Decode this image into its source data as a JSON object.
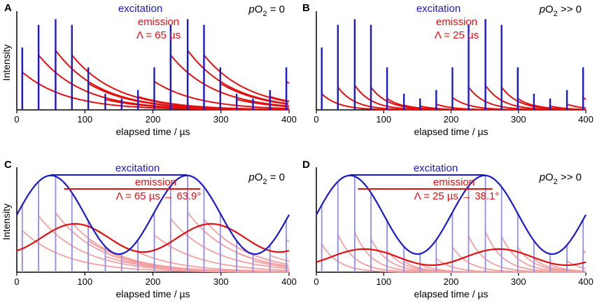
{
  "colors": {
    "excitation": "#1a1acc",
    "emission": "#e01010",
    "excitation_light": "#8f8ff0",
    "emission_light": "#f4a0a0",
    "axis": "#000000"
  },
  "chart_data": [
    {
      "panel": "A",
      "type": "line",
      "mode": "pulsed",
      "title": "",
      "xlabel": "elapsed time / µs",
      "ylabel": "Intensity",
      "xlim": [
        0,
        400
      ],
      "xticks": [
        0,
        100,
        200,
        300,
        400
      ],
      "ylim": [
        0,
        1
      ],
      "legend": {
        "excitation": "excitation",
        "emission": "emission",
        "lifetime": "Λ = 65 µs",
        "placement": "top-center"
      },
      "condition": {
        "p": "p",
        "o": "O",
        "sub": "2",
        "rel": " = 0"
      },
      "lifetime_us": 65,
      "pulse_times": [
        8,
        32,
        57,
        81,
        105,
        130,
        154,
        178,
        202,
        226,
        251,
        275,
        299,
        323,
        347,
        372,
        396
      ],
      "excitation_heights": [
        0.66,
        0.9,
        0.96,
        0.9,
        0.45,
        0.17,
        0.12,
        0.21,
        0.45,
        0.9,
        0.96,
        0.9,
        0.45,
        0.17,
        0.12,
        0.21,
        0.45
      ],
      "emission_peaks": [
        0.4,
        0.58,
        0.63,
        0.58,
        0.28,
        0.11,
        0.08,
        0.14,
        0.3,
        0.58,
        0.63,
        0.58,
        0.28,
        0.11,
        0.08,
        0.14,
        0.3
      ]
    },
    {
      "panel": "B",
      "type": "line",
      "mode": "pulsed",
      "title": "",
      "xlabel": "elapsed time / µs",
      "ylabel": "",
      "xlim": [
        0,
        400
      ],
      "xticks": [
        0,
        100,
        200,
        300,
        400
      ],
      "ylim": [
        0,
        1
      ],
      "legend": {
        "excitation": "excitation",
        "emission": "emission",
        "lifetime": "Λ = 25 µs",
        "placement": "top-center"
      },
      "condition": {
        "p": "p",
        "o": "O",
        "sub": "2",
        "rel": " >> 0"
      },
      "lifetime_us": 25,
      "pulse_times": [
        8,
        32,
        57,
        81,
        105,
        130,
        154,
        178,
        202,
        226,
        251,
        275,
        299,
        323,
        347,
        372,
        396
      ],
      "excitation_heights": [
        0.66,
        0.9,
        0.96,
        0.9,
        0.45,
        0.17,
        0.12,
        0.21,
        0.45,
        0.9,
        0.96,
        0.9,
        0.45,
        0.17,
        0.12,
        0.21,
        0.45
      ],
      "emission_peaks": [
        0.17,
        0.24,
        0.26,
        0.24,
        0.12,
        0.05,
        0.04,
        0.06,
        0.13,
        0.24,
        0.26,
        0.24,
        0.12,
        0.05,
        0.04,
        0.06,
        0.13
      ]
    },
    {
      "panel": "C",
      "type": "line",
      "mode": "sinusoidal",
      "title": "",
      "xlabel": "elapsed time / µs",
      "ylabel": "Intensity",
      "xlim": [
        0,
        400
      ],
      "xticks": [
        0,
        100,
        200,
        300,
        400
      ],
      "ylim": [
        0,
        1
      ],
      "legend": {
        "excitation": "excitation",
        "emission": "emission",
        "lifetime": "Λ = 65 µs → 63.9°",
        "placement": "top-center"
      },
      "condition": {
        "p": "p",
        "o": "O",
        "sub": "2",
        "rel": " = 0"
      },
      "lifetime_us": 65,
      "phase_deg": 63.9,
      "period_us": 200,
      "excitation_mean": 0.57,
      "excitation_amplitude": 0.39,
      "emission_mean": 0.34,
      "emission_amplitude": 0.14,
      "pulse_times": [
        8,
        32,
        57,
        81,
        105,
        130,
        154,
        178,
        202,
        226,
        251,
        275,
        299,
        323,
        347,
        372,
        396
      ]
    },
    {
      "panel": "D",
      "type": "line",
      "mode": "sinusoidal",
      "title": "",
      "xlabel": "elapsed time / µs",
      "ylabel": "",
      "xlim": [
        0,
        400
      ],
      "xticks": [
        0,
        100,
        200,
        300,
        400
      ],
      "ylim": [
        0,
        1
      ],
      "legend": {
        "excitation": "excitation",
        "emission": "emission",
        "lifetime": "Λ = 25 µs → 38.1°",
        "placement": "top-center"
      },
      "condition": {
        "p": "p",
        "o": "O",
        "sub": "2",
        "rel": " >> 0"
      },
      "lifetime_us": 25,
      "phase_deg": 38.1,
      "period_us": 200,
      "excitation_mean": 0.57,
      "excitation_amplitude": 0.39,
      "emission_mean": 0.15,
      "emission_amplitude": 0.08,
      "pulse_times": [
        8,
        32,
        57,
        81,
        105,
        130,
        154,
        178,
        202,
        226,
        251,
        275,
        299,
        323,
        347,
        372,
        396
      ]
    }
  ]
}
